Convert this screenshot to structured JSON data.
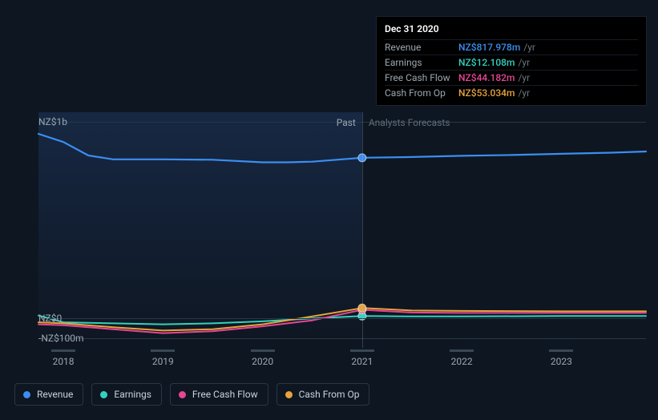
{
  "chart": {
    "background_color": "#0e1621",
    "grid_color": "#2a3645",
    "text_color": "#9aa7b0",
    "y_axis": {
      "labels": [
        "NZ$1b",
        "NZ$0",
        "-NZ$100m"
      ],
      "values_m": [
        1000,
        0,
        -100
      ],
      "min_m": -150,
      "max_m": 1050
    },
    "x_axis": {
      "labels": [
        "2018",
        "2019",
        "2020",
        "2021",
        "2022",
        "2023"
      ],
      "min": 2017.75,
      "max": 2023.85
    },
    "divider_x": 2021,
    "past_label": "Past",
    "forecast_label": "Analysts Forecasts",
    "past_color": "#9aa7b0",
    "forecast_color": "#5f6c78",
    "past_gradient_top": "rgba(30,55,95,0.55)",
    "past_gradient_bottom": "rgba(30,55,95,0.0)",
    "series": [
      {
        "key": "revenue",
        "label": "Revenue",
        "color": "#3b8ef0",
        "width": 2.2,
        "x": [
          2017.75,
          2018.0,
          2018.25,
          2018.5,
          2019.0,
          2019.5,
          2020.0,
          2020.25,
          2020.5,
          2021.0,
          2021.5,
          2022.0,
          2022.5,
          2023.0,
          2023.5,
          2023.85
        ],
        "y_m": [
          940,
          898,
          830,
          810,
          810,
          808,
          795,
          795,
          798,
          818,
          822,
          828,
          832,
          838,
          844,
          850
        ]
      },
      {
        "key": "earnings",
        "label": "Earnings",
        "color": "#34d1bf",
        "width": 2,
        "x": [
          2017.75,
          2018.0,
          2018.5,
          2019.0,
          2019.5,
          2020.0,
          2020.5,
          2021.0,
          2021.5,
          2022.0,
          2023.0,
          2023.85
        ],
        "y_m": [
          15,
          -20,
          -25,
          -30,
          -25,
          -15,
          0,
          12,
          10,
          10,
          12,
          12
        ]
      },
      {
        "key": "free_cash_flow",
        "label": "Free Cash Flow",
        "color": "#e74694",
        "width": 2,
        "x": [
          2017.75,
          2018.0,
          2018.5,
          2019.0,
          2019.5,
          2020.0,
          2020.5,
          2021.0,
          2021.5,
          2022.0,
          2023.0,
          2023.85
        ],
        "y_m": [
          -30,
          -35,
          -55,
          -75,
          -65,
          -40,
          -10,
          44,
          30,
          28,
          28,
          28
        ]
      },
      {
        "key": "cash_from_op",
        "label": "Cash From Op",
        "color": "#e8a33d",
        "width": 2,
        "x": [
          2017.75,
          2018.0,
          2018.5,
          2019.0,
          2019.5,
          2020.0,
          2020.5,
          2021.0,
          2021.5,
          2022.0,
          2023.0,
          2023.85
        ],
        "y_m": [
          -20,
          -25,
          -45,
          -62,
          -55,
          -30,
          10,
          53,
          40,
          38,
          36,
          36
        ]
      }
    ],
    "marker_x": 2021,
    "marker_radius": 5
  },
  "tooltip": {
    "title": "Dec 31 2020",
    "suffix": "/yr",
    "rows": [
      {
        "label": "Revenue",
        "value": "NZ$817.978m",
        "color": "#3b8ef0"
      },
      {
        "label": "Earnings",
        "value": "NZ$12.108m",
        "color": "#34d1bf"
      },
      {
        "label": "Free Cash Flow",
        "value": "NZ$44.182m",
        "color": "#e74694"
      },
      {
        "label": "Cash From Op",
        "value": "NZ$53.034m",
        "color": "#e8a33d"
      }
    ]
  },
  "legend": {
    "items": [
      {
        "label": "Revenue",
        "color": "#3b8ef0"
      },
      {
        "label": "Earnings",
        "color": "#34d1bf"
      },
      {
        "label": "Free Cash Flow",
        "color": "#e74694"
      },
      {
        "label": "Cash From Op",
        "color": "#e8a33d"
      }
    ]
  }
}
